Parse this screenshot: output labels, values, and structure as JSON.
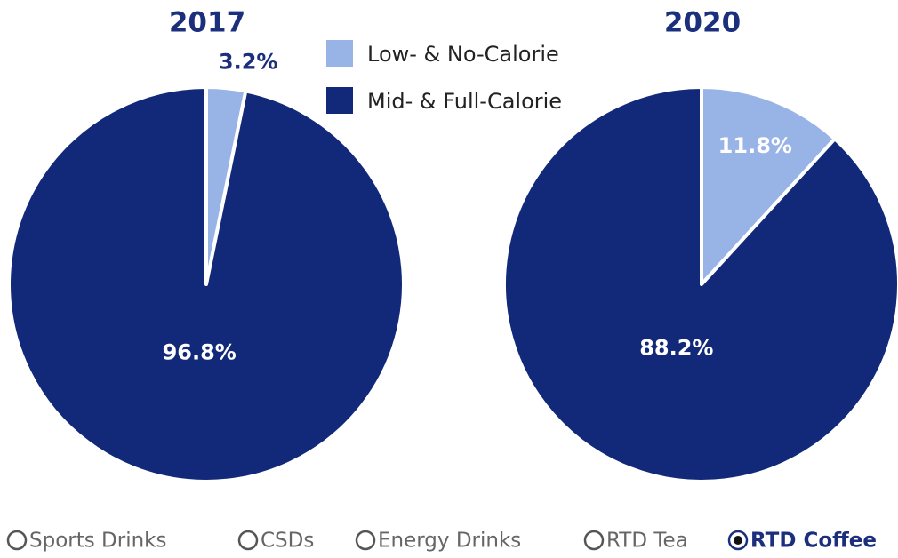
{
  "chart_data": [
    {
      "type": "pie",
      "title": "2017",
      "categories": [
        "Low- & No-Calorie",
        "Mid- & Full-Calorie"
      ],
      "values": [
        3.2,
        96.8
      ],
      "value_labels": [
        "3.2%",
        "96.8%"
      ],
      "colors": [
        "#98b4e6",
        "#12297a"
      ]
    },
    {
      "type": "pie",
      "title": "2020",
      "categories": [
        "Low- & No-Calorie",
        "Mid- & Full-Calorie"
      ],
      "values": [
        11.8,
        88.2
      ],
      "value_labels": [
        "11.8%",
        "88.2%"
      ],
      "colors": [
        "#98b4e6",
        "#12297a"
      ]
    }
  ],
  "filters": {
    "options": [
      "Sports Drinks",
      "CSDs",
      "Energy Drinks",
      "RTD Tea",
      "RTD Coffee"
    ],
    "selected": 4
  }
}
